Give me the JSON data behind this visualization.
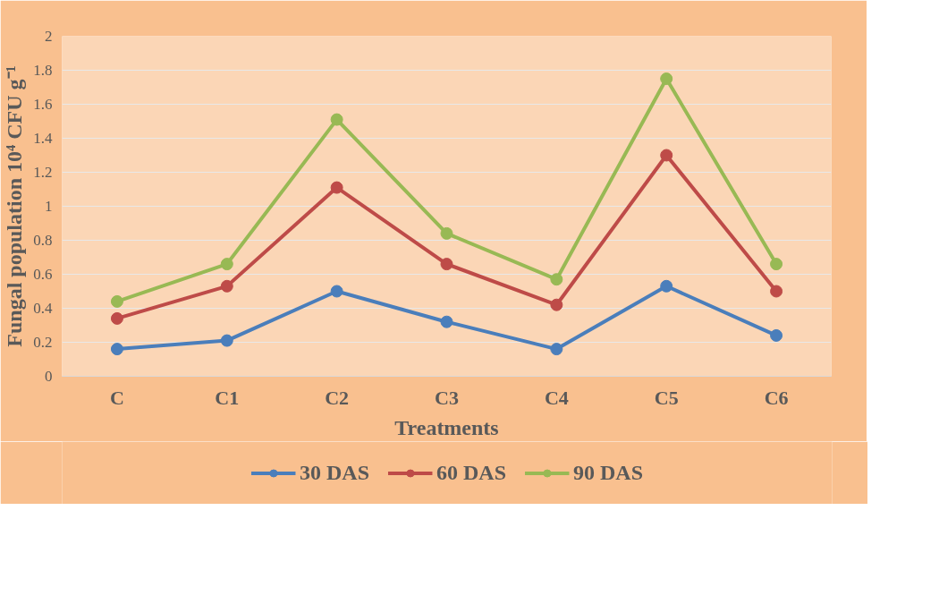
{
  "chart_data": {
    "type": "line",
    "xlabel": "Treatments",
    "ylabel": "Fungal population 10⁴ CFU g⁻¹",
    "categories": [
      "C",
      "C1",
      "C2",
      "C3",
      "C4",
      "C5",
      "C6"
    ],
    "series": [
      {
        "name": "30 DAS",
        "color": "#4a7ebb",
        "values": [
          0.16,
          0.21,
          0.5,
          0.32,
          0.16,
          0.53,
          0.24
        ]
      },
      {
        "name": "60 DAS",
        "color": "#be4b48",
        "values": [
          0.34,
          0.53,
          1.11,
          0.66,
          0.42,
          1.3,
          0.5
        ]
      },
      {
        "name": "90 DAS",
        "color": "#98b954",
        "values": [
          0.44,
          0.66,
          1.51,
          0.84,
          0.57,
          1.75,
          0.66
        ]
      }
    ],
    "ylim": [
      0,
      2
    ],
    "yticks": [
      0,
      0.2,
      0.4,
      0.6,
      0.8,
      1,
      1.2,
      1.4,
      1.6,
      1.8,
      2
    ],
    "grid": "y",
    "legend": "bottom",
    "marker": "circle",
    "line_style": "solid"
  }
}
